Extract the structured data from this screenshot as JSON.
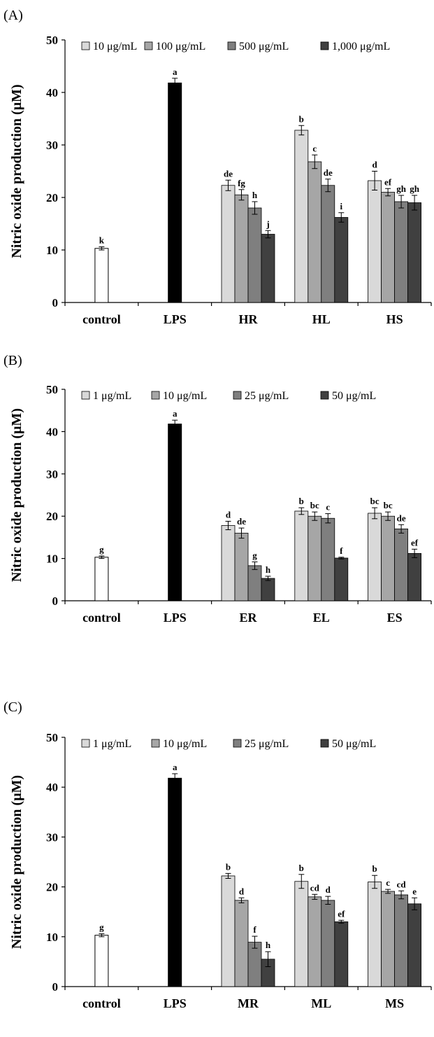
{
  "chart_data": [
    {
      "type": "bar",
      "panel": "(A)",
      "ylabel": "Nitric oxide production (μM)",
      "ylim": [
        0,
        50
      ],
      "yticks": [
        "0",
        "10",
        "20",
        "30",
        "40",
        "50"
      ],
      "categories": [
        "control",
        "LPS",
        "HR",
        "HL",
        "HS"
      ],
      "legend": [
        "10 μg/mL",
        "100 μg/mL",
        "500 μg/mL",
        "1,000 μg/mL"
      ],
      "legend_position": "top",
      "colors": {
        "control": "#ffffff",
        "lps": "#000000",
        "series": [
          "#d9d9d9",
          "#a6a6a6",
          "#7f7f7f",
          "#404040"
        ]
      },
      "single_bars": [
        {
          "category": "control",
          "value": 10.3,
          "error": 0.3,
          "letter": "k"
        },
        {
          "category": "LPS",
          "value": 41.8,
          "error": 0.9,
          "letter": "a"
        }
      ],
      "grouped": [
        {
          "category": "HR",
          "values": [
            22.3,
            20.5,
            18.0,
            13.0
          ],
          "errors": [
            1.0,
            1.0,
            1.2,
            0.7
          ],
          "letters": [
            "de",
            "fg",
            "h",
            "j"
          ]
        },
        {
          "category": "HL",
          "values": [
            32.8,
            26.8,
            22.3,
            16.2
          ],
          "errors": [
            0.9,
            1.3,
            1.2,
            0.9
          ],
          "letters": [
            "b",
            "c",
            "de",
            "i"
          ]
        },
        {
          "category": "HS",
          "values": [
            23.2,
            21.0,
            19.2,
            19.0
          ],
          "errors": [
            1.8,
            0.7,
            1.2,
            1.4
          ],
          "letters": [
            "d",
            "ef",
            "gh",
            "gh"
          ]
        }
      ]
    },
    {
      "type": "bar",
      "panel": "(B)",
      "ylabel": "Nitric oxide production (μM)",
      "ylim": [
        0,
        50
      ],
      "yticks": [
        "0",
        "10",
        "20",
        "30",
        "40",
        "50"
      ],
      "categories": [
        "control",
        "LPS",
        "ER",
        "EL",
        "ES"
      ],
      "legend": [
        "1 μg/mL",
        "10 μg/mL",
        "25 μg/mL",
        "50 μg/mL"
      ],
      "legend_position": "top",
      "colors": {
        "control": "#ffffff",
        "lps": "#000000",
        "series": [
          "#d9d9d9",
          "#a6a6a6",
          "#7f7f7f",
          "#404040"
        ]
      },
      "single_bars": [
        {
          "category": "control",
          "value": 10.3,
          "error": 0.3,
          "letter": "g"
        },
        {
          "category": "LPS",
          "value": 41.8,
          "error": 0.9,
          "letter": "a"
        }
      ],
      "grouped": [
        {
          "category": "ER",
          "values": [
            17.8,
            16.0,
            8.3,
            5.3
          ],
          "errors": [
            1.0,
            1.2,
            0.9,
            0.5
          ],
          "letters": [
            "d",
            "de",
            "g",
            "h"
          ]
        },
        {
          "category": "EL",
          "values": [
            21.2,
            20.0,
            19.5,
            10.1
          ],
          "errors": [
            0.8,
            1.0,
            1.1,
            0.2
          ],
          "letters": [
            "b",
            "bc",
            "c",
            "f"
          ]
        },
        {
          "category": "ES",
          "values": [
            20.7,
            20.0,
            17.0,
            11.2
          ],
          "errors": [
            1.3,
            1.0,
            1.0,
            1.0
          ],
          "letters": [
            "bc",
            "bc",
            "de",
            "ef"
          ]
        }
      ]
    },
    {
      "type": "bar",
      "panel": "(C)",
      "ylabel": "Nitric oxide production (μM)",
      "ylim": [
        0,
        50
      ],
      "yticks": [
        "0",
        "10",
        "20",
        "30",
        "40",
        "50"
      ],
      "categories": [
        "control",
        "LPS",
        "MR",
        "ML",
        "MS"
      ],
      "legend": [
        "1 μg/mL",
        "10 μg/mL",
        "25 μg/mL",
        "50 μg/mL"
      ],
      "legend_position": "top",
      "colors": {
        "control": "#ffffff",
        "lps": "#000000",
        "series": [
          "#d9d9d9",
          "#a6a6a6",
          "#7f7f7f",
          "#404040"
        ]
      },
      "single_bars": [
        {
          "category": "control",
          "value": 10.3,
          "error": 0.3,
          "letter": "g"
        },
        {
          "category": "LPS",
          "value": 41.8,
          "error": 0.9,
          "letter": "a"
        }
      ],
      "grouped": [
        {
          "category": "MR",
          "values": [
            22.2,
            17.3,
            8.9,
            5.5
          ],
          "errors": [
            0.5,
            0.5,
            1.2,
            1.5
          ],
          "letters": [
            "b",
            "d",
            "f",
            "h"
          ]
        },
        {
          "category": "ML",
          "values": [
            21.1,
            18.0,
            17.3,
            13.0
          ],
          "errors": [
            1.4,
            0.5,
            0.8,
            0.3
          ],
          "letters": [
            "b",
            "cd",
            "d",
            "ef"
          ]
        },
        {
          "category": "MS",
          "values": [
            21.0,
            19.1,
            18.4,
            16.6
          ],
          "errors": [
            1.3,
            0.4,
            0.8,
            1.2
          ],
          "letters": [
            "b",
            "c",
            "cd",
            "e"
          ]
        }
      ]
    }
  ]
}
